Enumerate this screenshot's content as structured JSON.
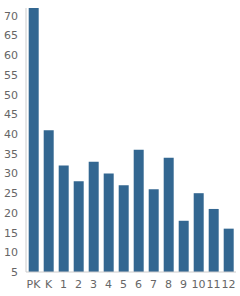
{
  "chart_data": {
    "type": "bar",
    "categories": [
      "PK",
      "K",
      "1",
      "2",
      "3",
      "4",
      "5",
      "6",
      "7",
      "8",
      "9",
      "10",
      "11",
      "12"
    ],
    "values": [
      72,
      41,
      32,
      28,
      33,
      30,
      27,
      36,
      26,
      34,
      18,
      25,
      21,
      16
    ],
    "color": "#336791",
    "ylim": [
      5,
      72
    ],
    "yticks": [
      5,
      10,
      15,
      20,
      25,
      30,
      35,
      40,
      45,
      50,
      55,
      60,
      65,
      70
    ],
    "grid": false
  }
}
